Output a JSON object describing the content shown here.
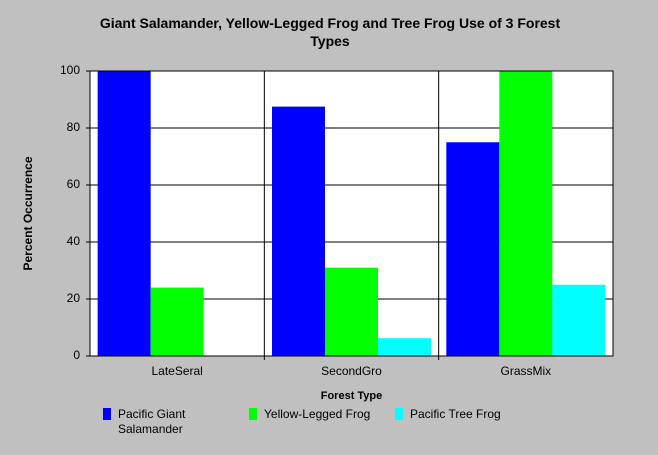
{
  "chart_data": {
    "type": "bar",
    "title": "Giant Salamander, Yellow-Legged Frog and Tree Frog Use of 3 Forest Types",
    "x_label": "Forest Type",
    "y_label": "Percent Occurrence",
    "categories": [
      "LateSeral",
      "SecondGro",
      "GrassMix"
    ],
    "series": [
      {
        "name": "Pacific Giant Salamander",
        "color": "#0000ff",
        "values": [
          100,
          87.5,
          75
        ]
      },
      {
        "name": "Yellow-Legged Frog",
        "color": "#00ff00",
        "values": [
          24,
          31,
          100
        ]
      },
      {
        "name": "Pacific Tree Frog",
        "color": "#00ffff",
        "values": [
          0,
          6.25,
          25
        ]
      }
    ],
    "ylim": [
      0,
      100
    ],
    "yticks": [
      0,
      20,
      40,
      60,
      80,
      100
    ],
    "grid": true
  }
}
